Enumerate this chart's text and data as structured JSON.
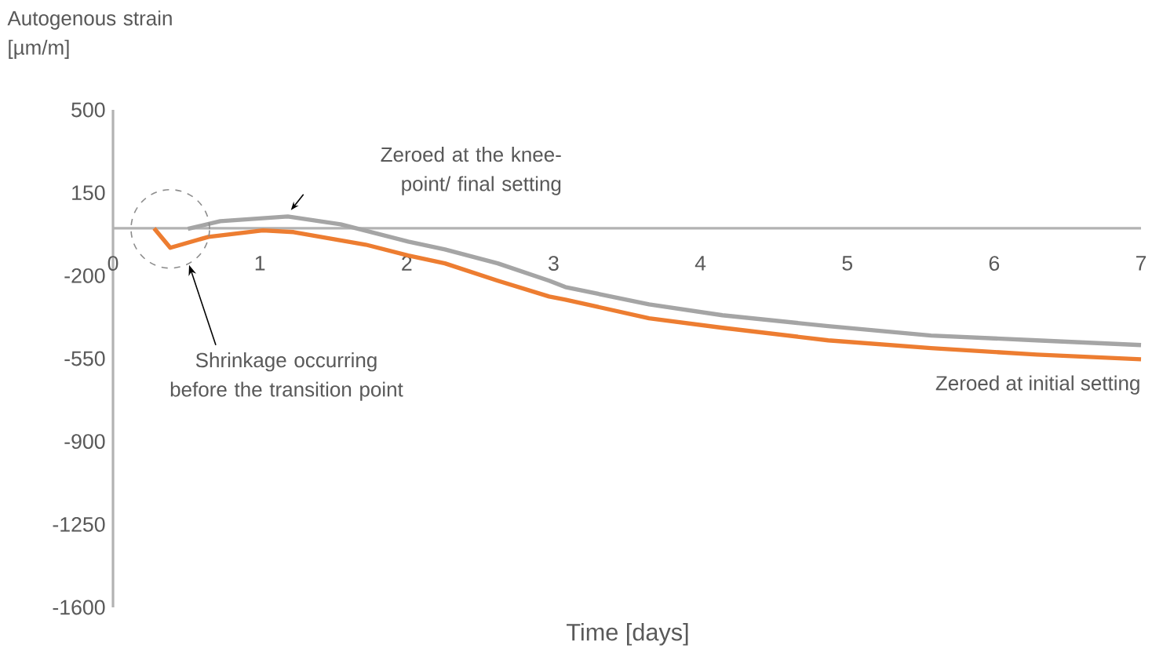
{
  "chart_data": {
    "type": "line",
    "ylabel": "Autogenous strain [µm/m]",
    "xlabel": "Time [days]",
    "xlim": [
      0,
      7
    ],
    "ylim": [
      -1600,
      500
    ],
    "xticks": [
      0,
      1,
      2,
      3,
      4,
      5,
      6,
      7
    ],
    "yticks": [
      500,
      150,
      -200,
      -550,
      -900,
      -1250,
      -1600
    ],
    "grid": false,
    "legend": false,
    "marker": "none",
    "line_style": "solid",
    "series": [
      {
        "name": "Zeroed at the knee-point/ final setting",
        "color": "#a5a5a5",
        "x": [
          0.51,
          0.73,
          1.19,
          1.55,
          2.01,
          2.26,
          2.62,
          2.97,
          3.08,
          3.65,
          4.15,
          4.87,
          5.57,
          6.29,
          7.0
        ],
        "values": [
          -2,
          30,
          50,
          17,
          -56,
          -89,
          -148,
          -221,
          -248,
          -321,
          -367,
          -413,
          -453,
          -473,
          -493
        ]
      },
      {
        "name": "Zeroed at initial setting",
        "color": "#ed7d31",
        "x": [
          0.28,
          0.39,
          0.65,
          1.02,
          1.23,
          1.72,
          2.01,
          2.26,
          2.62,
          2.97,
          3.08,
          3.65,
          4.15,
          4.87,
          5.57,
          6.29,
          7.0
        ],
        "values": [
          0,
          -82,
          -36,
          -9,
          -16,
          -69,
          -115,
          -148,
          -221,
          -288,
          -301,
          -380,
          -420,
          -473,
          -506,
          -533,
          -553
        ]
      }
    ],
    "annotations": [
      "Shrinkage occurring before the transition point"
    ]
  }
}
